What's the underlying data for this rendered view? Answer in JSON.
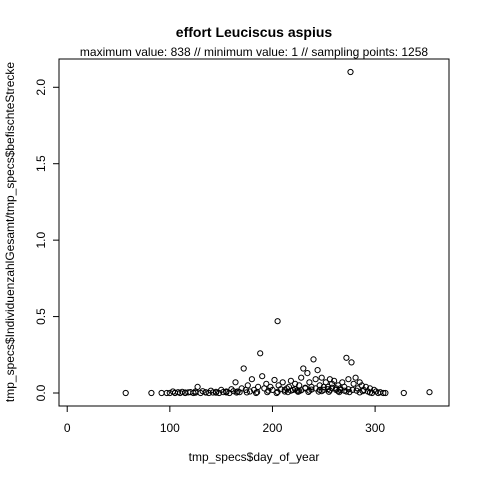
{
  "chart_data": {
    "type": "scatter",
    "title": "effort Leuciscus aspius",
    "subtitle": "maximum value: 838  //  minimum value: 1  // sampling points: 1258",
    "xlabel": "tmp_specs$day_of_year",
    "ylabel": "tmp_specs$IndividuenzahlGesamt/tmp_specs$befischteStrecke",
    "xlim": [
      -8,
      372
    ],
    "ylim": [
      -0.085,
      2.185
    ],
    "x_ticks": [
      0,
      100,
      200,
      300
    ],
    "y_ticks": [
      0.0,
      0.5,
      1.0,
      1.5,
      2.0
    ],
    "x_tick_labels": [
      "0",
      "100",
      "200",
      "300"
    ],
    "y_tick_labels": [
      "0.0",
      "0.5",
      "1.0",
      "1.5",
      "2.0"
    ],
    "marker": "open-circle",
    "grid": false,
    "legend": "none",
    "points": [
      [
        57,
        0.0
      ],
      [
        82,
        0.0
      ],
      [
        92,
        0.0
      ],
      [
        97,
        0.0
      ],
      [
        100,
        0.0
      ],
      [
        103,
        0.01
      ],
      [
        105,
        0.0
      ],
      [
        108,
        0.005
      ],
      [
        110,
        0.0
      ],
      [
        112,
        0.008
      ],
      [
        115,
        0.0
      ],
      [
        118,
        0.004
      ],
      [
        120,
        0.006
      ],
      [
        123,
        0.0
      ],
      [
        125,
        0.01
      ],
      [
        127,
        0.04
      ],
      [
        130,
        0.0
      ],
      [
        132,
        0.012
      ],
      [
        135,
        0.005
      ],
      [
        138,
        0.0
      ],
      [
        140,
        0.015
      ],
      [
        142,
        0.003
      ],
      [
        145,
        0.008
      ],
      [
        148,
        0.0
      ],
      [
        150,
        0.02
      ],
      [
        152,
        0.006
      ],
      [
        155,
        0.01
      ],
      [
        158,
        0.0
      ],
      [
        160,
        0.025
      ],
      [
        162,
        0.012
      ],
      [
        164,
        0.07
      ],
      [
        166,
        0.01
      ],
      [
        168,
        0.005
      ],
      [
        170,
        0.03
      ],
      [
        172,
        0.16
      ],
      [
        174,
        0.02
      ],
      [
        176,
        0.05
      ],
      [
        178,
        0.01
      ],
      [
        180,
        0.09
      ],
      [
        182,
        0.02
      ],
      [
        184,
        0.0
      ],
      [
        186,
        0.04
      ],
      [
        188,
        0.26
      ],
      [
        190,
        0.11
      ],
      [
        192,
        0.03
      ],
      [
        194,
        0.06
      ],
      [
        196,
        0.015
      ],
      [
        198,
        0.04
      ],
      [
        200,
        0.02
      ],
      [
        202,
        0.085
      ],
      [
        204,
        0.0
      ],
      [
        205,
        0.47
      ],
      [
        206,
        0.05
      ],
      [
        208,
        0.025
      ],
      [
        210,
        0.07
      ],
      [
        212,
        0.01
      ],
      [
        214,
        0.03
      ],
      [
        216,
        0.04
      ],
      [
        218,
        0.08
      ],
      [
        220,
        0.02
      ],
      [
        222,
        0.06
      ],
      [
        224,
        0.015
      ],
      [
        226,
        0.05
      ],
      [
        228,
        0.1
      ],
      [
        230,
        0.16
      ],
      [
        232,
        0.03
      ],
      [
        234,
        0.13
      ],
      [
        236,
        0.07
      ],
      [
        238,
        0.04
      ],
      [
        240,
        0.22
      ],
      [
        242,
        0.09
      ],
      [
        244,
        0.15
      ],
      [
        246,
        0.05
      ],
      [
        248,
        0.1
      ],
      [
        250,
        0.02
      ],
      [
        252,
        0.07
      ],
      [
        254,
        0.04
      ],
      [
        256,
        0.09
      ],
      [
        258,
        0.06
      ],
      [
        260,
        0.08
      ],
      [
        262,
        0.03
      ],
      [
        264,
        0.05
      ],
      [
        266,
        0.02
      ],
      [
        268,
        0.07
      ],
      [
        270,
        0.04
      ],
      [
        272,
        0.23
      ],
      [
        274,
        0.09
      ],
      [
        276,
        2.1
      ],
      [
        277,
        0.2
      ],
      [
        279,
        0.06
      ],
      [
        281,
        0.1
      ],
      [
        283,
        0.03
      ],
      [
        285,
        0.07
      ],
      [
        287,
        0.05
      ],
      [
        289,
        0.02
      ],
      [
        291,
        0.04
      ],
      [
        293,
        0.01
      ],
      [
        295,
        0.03
      ],
      [
        297,
        0.0
      ],
      [
        299,
        0.02
      ],
      [
        301,
        0.01
      ],
      [
        303,
        0.0
      ],
      [
        305,
        0.005
      ],
      [
        308,
        0.0
      ],
      [
        310,
        0.0
      ],
      [
        328,
        0.0
      ],
      [
        353,
        0.005
      ],
      [
        105,
        0.002
      ],
      [
        115,
        0.003
      ],
      [
        125,
        0.002
      ],
      [
        135,
        0.003
      ],
      [
        145,
        0.002
      ],
      [
        155,
        0.004
      ],
      [
        165,
        0.003
      ],
      [
        175,
        0.004
      ],
      [
        185,
        0.006
      ],
      [
        195,
        0.005
      ],
      [
        205,
        0.007
      ],
      [
        215,
        0.006
      ],
      [
        225,
        0.008
      ],
      [
        235,
        0.007
      ],
      [
        245,
        0.009
      ],
      [
        255,
        0.008
      ],
      [
        265,
        0.006
      ],
      [
        275,
        0.005
      ],
      [
        285,
        0.004
      ],
      [
        295,
        0.003
      ],
      [
        212,
        0.02
      ],
      [
        218,
        0.015
      ],
      [
        222,
        0.025
      ],
      [
        228,
        0.018
      ],
      [
        232,
        0.035
      ],
      [
        238,
        0.022
      ],
      [
        242,
        0.03
      ],
      [
        246,
        0.02
      ],
      [
        250,
        0.04
      ],
      [
        254,
        0.025
      ],
      [
        258,
        0.035
      ],
      [
        262,
        0.02
      ],
      [
        266,
        0.03
      ],
      [
        270,
        0.015
      ],
      [
        274,
        0.025
      ],
      [
        278,
        0.02
      ],
      [
        226,
        0.012
      ],
      [
        236,
        0.015
      ],
      [
        248,
        0.012
      ],
      [
        256,
        0.018
      ],
      [
        264,
        0.012
      ],
      [
        272,
        0.01
      ],
      [
        282,
        0.015
      ],
      [
        288,
        0.012
      ]
    ]
  }
}
